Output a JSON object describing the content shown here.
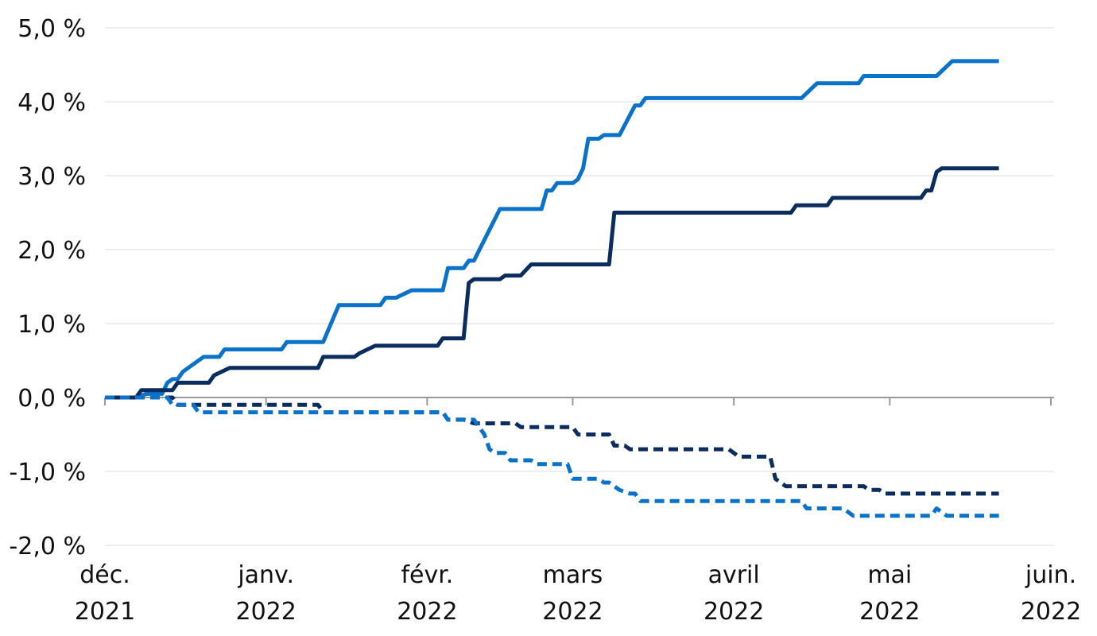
{
  "chart_data": {
    "type": "line",
    "title": "",
    "xlabel": "",
    "ylabel": "",
    "ylim": [
      -2.0,
      5.0
    ],
    "y_ticks": [
      {
        "value": 5.0,
        "label": "5,0 %"
      },
      {
        "value": 4.0,
        "label": "4,0 %"
      },
      {
        "value": 3.0,
        "label": "3,0 %"
      },
      {
        "value": 2.0,
        "label": "2,0 %"
      },
      {
        "value": 1.0,
        "label": "1,0 %"
      },
      {
        "value": 0.0,
        "label": "0,0 %"
      },
      {
        "value": -1.0,
        "label": "-1,0 %"
      },
      {
        "value": -2.0,
        "label": "-2,0 %"
      }
    ],
    "x_range": [
      "2021-12-01",
      "2022-06-01"
    ],
    "x_ticks": [
      {
        "date": "2021-12-01",
        "line1": "déc.",
        "line2": "2021"
      },
      {
        "date": "2022-01-01",
        "line1": "janv.",
        "line2": "2022"
      },
      {
        "date": "2022-02-01",
        "line1": "févr.",
        "line2": "2022"
      },
      {
        "date": "2022-03-01",
        "line1": "mars",
        "line2": "2022"
      },
      {
        "date": "2022-04-01",
        "line1": "avril",
        "line2": "2022"
      },
      {
        "date": "2022-05-01",
        "line1": "mai",
        "line2": "2022"
      },
      {
        "date": "2022-06-01",
        "line1": "juin.",
        "line2": "2022"
      }
    ],
    "grid": true,
    "legend": "none",
    "series": [
      {
        "color": "#0a72c9",
        "dash": "solid",
        "points": [
          [
            "2021-12-01",
            0.0
          ],
          [
            "2021-12-07",
            0.0
          ],
          [
            "2021-12-09",
            0.05
          ],
          [
            "2021-12-12",
            0.05
          ],
          [
            "2021-12-13",
            0.2
          ],
          [
            "2021-12-14",
            0.25
          ],
          [
            "2021-12-15",
            0.25
          ],
          [
            "2021-12-16",
            0.35
          ],
          [
            "2021-12-19",
            0.5
          ],
          [
            "2021-12-20",
            0.55
          ],
          [
            "2021-12-23",
            0.55
          ],
          [
            "2021-12-24",
            0.65
          ],
          [
            "2022-01-04",
            0.65
          ],
          [
            "2022-01-05",
            0.75
          ],
          [
            "2022-01-12",
            0.75
          ],
          [
            "2022-01-15",
            1.25
          ],
          [
            "2022-01-23",
            1.25
          ],
          [
            "2022-01-24",
            1.35
          ],
          [
            "2022-01-26",
            1.35
          ],
          [
            "2022-01-29",
            1.45
          ],
          [
            "2022-02-04",
            1.45
          ],
          [
            "2022-02-05",
            1.75
          ],
          [
            "2022-02-08",
            1.75
          ],
          [
            "2022-02-09",
            1.85
          ],
          [
            "2022-02-10",
            1.85
          ],
          [
            "2022-02-15",
            2.55
          ],
          [
            "2022-02-23",
            2.55
          ],
          [
            "2022-02-24",
            2.8
          ],
          [
            "2022-02-25",
            2.8
          ],
          [
            "2022-02-26",
            2.9
          ],
          [
            "2022-03-01",
            2.9
          ],
          [
            "2022-03-02",
            2.95
          ],
          [
            "2022-03-03",
            3.1
          ],
          [
            "2022-03-04",
            3.5
          ],
          [
            "2022-03-06",
            3.5
          ],
          [
            "2022-03-07",
            3.55
          ],
          [
            "2022-03-10",
            3.55
          ],
          [
            "2022-03-13",
            3.95
          ],
          [
            "2022-03-14",
            3.95
          ],
          [
            "2022-03-15",
            4.05
          ],
          [
            "2022-04-14",
            4.05
          ],
          [
            "2022-04-17",
            4.25
          ],
          [
            "2022-04-25",
            4.25
          ],
          [
            "2022-04-26",
            4.35
          ],
          [
            "2022-05-10",
            4.35
          ],
          [
            "2022-05-13",
            4.55
          ],
          [
            "2022-05-22",
            4.55
          ]
        ]
      },
      {
        "color": "#0b2d5e",
        "dash": "solid",
        "points": [
          [
            "2021-12-01",
            0.0
          ],
          [
            "2021-12-07",
            0.0
          ],
          [
            "2021-12-08",
            0.1
          ],
          [
            "2021-12-14",
            0.1
          ],
          [
            "2021-12-15",
            0.2
          ],
          [
            "2021-12-21",
            0.2
          ],
          [
            "2021-12-22",
            0.3
          ],
          [
            "2021-12-25",
            0.4
          ],
          [
            "2022-01-11",
            0.4
          ],
          [
            "2022-01-12",
            0.55
          ],
          [
            "2022-01-18",
            0.55
          ],
          [
            "2022-01-19",
            0.6
          ],
          [
            "2022-01-22",
            0.7
          ],
          [
            "2022-02-03",
            0.7
          ],
          [
            "2022-02-04",
            0.8
          ],
          [
            "2022-02-08",
            0.8
          ],
          [
            "2022-02-09",
            1.55
          ],
          [
            "2022-02-10",
            1.6
          ],
          [
            "2022-02-15",
            1.6
          ],
          [
            "2022-02-16",
            1.65
          ],
          [
            "2022-02-19",
            1.65
          ],
          [
            "2022-02-21",
            1.8
          ],
          [
            "2022-03-08",
            1.8
          ],
          [
            "2022-03-09",
            2.5
          ],
          [
            "2022-04-12",
            2.5
          ],
          [
            "2022-04-13",
            2.6
          ],
          [
            "2022-04-19",
            2.6
          ],
          [
            "2022-04-20",
            2.7
          ],
          [
            "2022-05-07",
            2.7
          ],
          [
            "2022-05-08",
            2.8
          ],
          [
            "2022-05-09",
            2.8
          ],
          [
            "2022-05-10",
            3.05
          ],
          [
            "2022-05-11",
            3.1
          ],
          [
            "2022-05-22",
            3.1
          ]
        ]
      },
      {
        "color": "#0b2d5e",
        "dash": "dashed",
        "points": [
          [
            "2021-12-01",
            0.0
          ],
          [
            "2021-12-14",
            0.0
          ],
          [
            "2021-12-15",
            -0.1
          ],
          [
            "2022-01-11",
            -0.1
          ],
          [
            "2022-01-12",
            -0.2
          ],
          [
            "2022-02-04",
            -0.2
          ],
          [
            "2022-02-05",
            -0.3
          ],
          [
            "2022-02-08",
            -0.3
          ],
          [
            "2022-02-10",
            -0.35
          ],
          [
            "2022-02-18",
            -0.35
          ],
          [
            "2022-02-19",
            -0.4
          ],
          [
            "2022-03-01",
            -0.4
          ],
          [
            "2022-03-02",
            -0.5
          ],
          [
            "2022-03-08",
            -0.5
          ],
          [
            "2022-03-09",
            -0.65
          ],
          [
            "2022-03-11",
            -0.65
          ],
          [
            "2022-03-12",
            -0.7
          ],
          [
            "2022-03-31",
            -0.7
          ],
          [
            "2022-04-01",
            -0.75
          ],
          [
            "2022-04-02",
            -0.8
          ],
          [
            "2022-04-08",
            -0.8
          ],
          [
            "2022-04-09",
            -1.1
          ],
          [
            "2022-04-11",
            -1.2
          ],
          [
            "2022-04-26",
            -1.2
          ],
          [
            "2022-04-27",
            -1.25
          ],
          [
            "2022-04-29",
            -1.25
          ],
          [
            "2022-04-30",
            -1.3
          ],
          [
            "2022-05-22",
            -1.3
          ]
        ]
      },
      {
        "color": "#0a72c9",
        "dash": "dashed",
        "points": [
          [
            "2021-12-01",
            0.0
          ],
          [
            "2021-12-13",
            0.0
          ],
          [
            "2021-12-14",
            -0.1
          ],
          [
            "2021-12-18",
            -0.1
          ],
          [
            "2021-12-19",
            -0.2
          ],
          [
            "2022-02-04",
            -0.2
          ],
          [
            "2022-02-05",
            -0.3
          ],
          [
            "2022-02-10",
            -0.3
          ],
          [
            "2022-02-12",
            -0.5
          ],
          [
            "2022-02-13",
            -0.7
          ],
          [
            "2022-02-14",
            -0.75
          ],
          [
            "2022-02-16",
            -0.75
          ],
          [
            "2022-02-17",
            -0.85
          ],
          [
            "2022-02-21",
            -0.85
          ],
          [
            "2022-02-22",
            -0.9
          ],
          [
            "2022-02-28",
            -0.9
          ],
          [
            "2022-03-01",
            -1.1
          ],
          [
            "2022-03-06",
            -1.1
          ],
          [
            "2022-03-07",
            -1.15
          ],
          [
            "2022-03-08",
            -1.15
          ],
          [
            "2022-03-10",
            -1.25
          ],
          [
            "2022-03-12",
            -1.3
          ],
          [
            "2022-03-13",
            -1.3
          ],
          [
            "2022-03-14",
            -1.4
          ],
          [
            "2022-04-14",
            -1.4
          ],
          [
            "2022-04-15",
            -1.5
          ],
          [
            "2022-04-22",
            -1.5
          ],
          [
            "2022-04-24",
            -1.6
          ],
          [
            "2022-05-09",
            -1.6
          ],
          [
            "2022-05-10",
            -1.5
          ],
          [
            "2022-05-12",
            -1.6
          ],
          [
            "2022-05-22",
            -1.6
          ]
        ]
      }
    ]
  },
  "style": {
    "grid_color": "#dddddd",
    "axis_color": "#9a9a9a",
    "text_color": "#111111"
  }
}
